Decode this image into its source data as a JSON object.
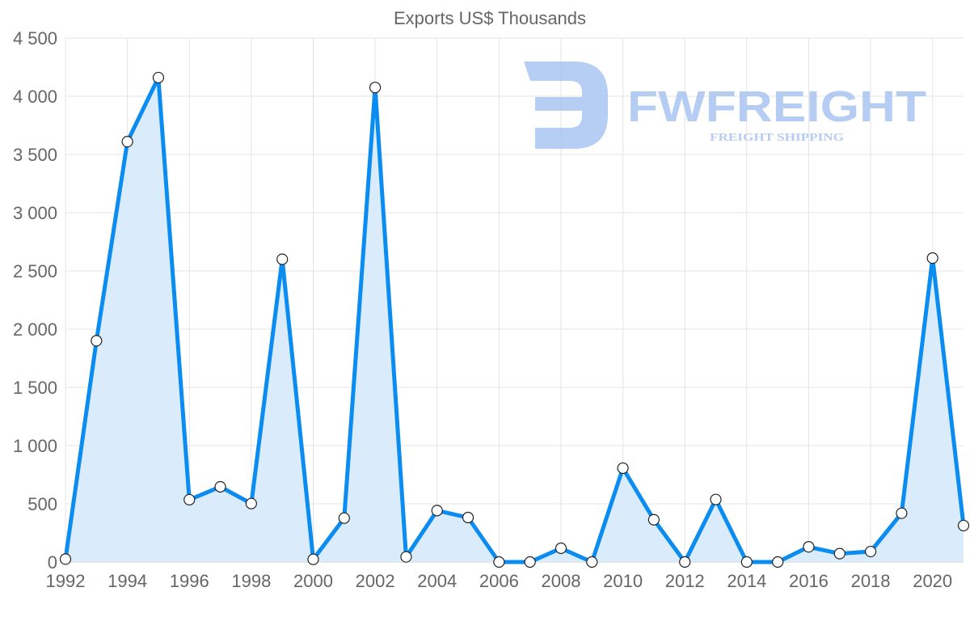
{
  "chart_data": {
    "type": "line",
    "title": "Exports US$ Thousands",
    "xlabel": "",
    "ylabel": "",
    "x": [
      1992,
      1993,
      1994,
      1995,
      1996,
      1997,
      1998,
      1999,
      2000,
      2001,
      2002,
      2003,
      2004,
      2005,
      2006,
      2007,
      2008,
      2009,
      2010,
      2011,
      2012,
      2013,
      2014,
      2015,
      2016,
      2017,
      2018,
      2019,
      2020,
      2021
    ],
    "series": [
      {
        "name": "Exports US$ Thousands",
        "values": [
          25,
          1900,
          3610,
          4160,
          535,
          646,
          502,
          2600,
          23,
          377,
          4075,
          44,
          442,
          382,
          0,
          0,
          118,
          0,
          806,
          363,
          0,
          537,
          0,
          0,
          130,
          72,
          90,
          419,
          2610,
          313
        ],
        "color": "#0a8cf0",
        "fill": "#d8ebfb"
      }
    ],
    "ylim": [
      0,
      4500
    ],
    "yticks": [
      0,
      500,
      1000,
      1500,
      2000,
      2500,
      3000,
      3500,
      4000,
      4500
    ],
    "ytick_labels": [
      "0",
      "500",
      "1 000",
      "1 500",
      "2 000",
      "2 500",
      "3 000",
      "3 500",
      "4 000",
      "4 500"
    ],
    "xticks": [
      1992,
      1994,
      1996,
      1998,
      2000,
      2002,
      2004,
      2006,
      2008,
      2010,
      2012,
      2014,
      2016,
      2018,
      2020
    ],
    "xtick_labels": [
      "1992",
      "1994",
      "1996",
      "1998",
      "2000",
      "2002",
      "2004",
      "2006",
      "2008",
      "2010",
      "2012",
      "2014",
      "2016",
      "2018",
      "2020"
    ],
    "grid": true,
    "legend": "none"
  },
  "watermark": {
    "brand": "FWFREIGHT",
    "tagline": "FREIGHT SHIPPING",
    "color": "#a9c4f2"
  }
}
